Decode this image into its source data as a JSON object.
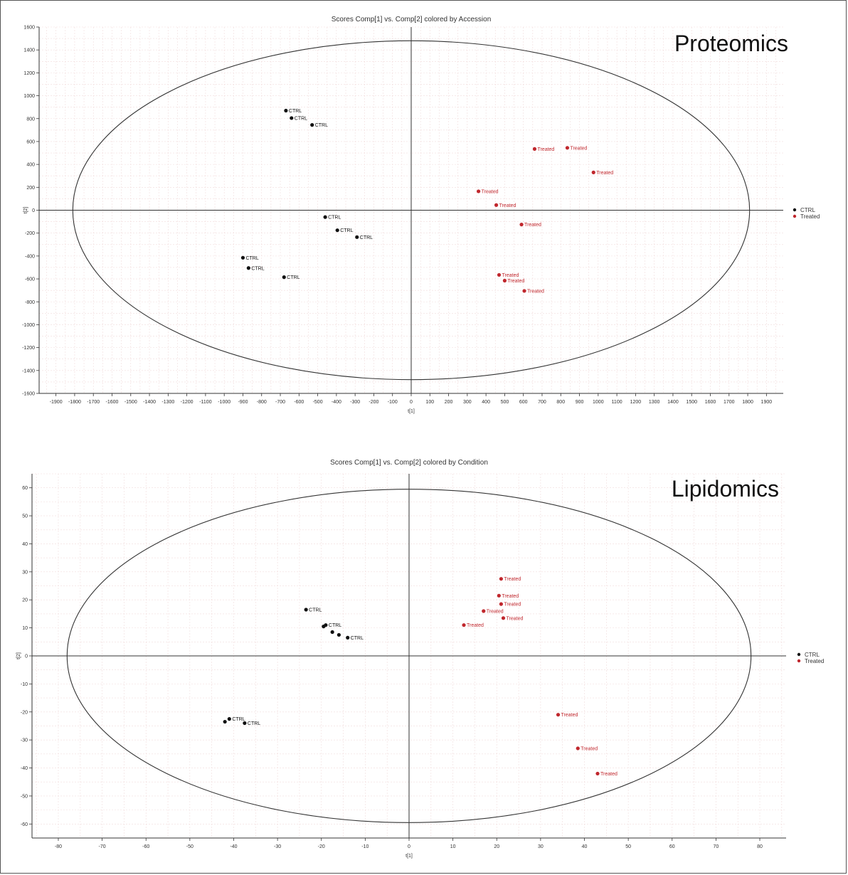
{
  "chart_data": [
    {
      "type": "scatter",
      "title": "Scores Comp[1] vs. Comp[2] colored by Accession",
      "overlay_label": "Proteomics",
      "xlabel": "t[1]",
      "ylabel": "t[2]",
      "xlim": [
        -1990,
        1990
      ],
      "ylim": [
        -1600,
        1600
      ],
      "xticks": [
        -1900,
        -1800,
        -1700,
        -1600,
        -1500,
        -1400,
        -1300,
        -1200,
        -1100,
        -1000,
        -900,
        -800,
        -700,
        -600,
        -500,
        -400,
        -300,
        -200,
        -100,
        0,
        100,
        200,
        300,
        400,
        500,
        600,
        700,
        800,
        900,
        1000,
        1100,
        1200,
        1300,
        1400,
        1500,
        1600,
        1700,
        1800,
        1900
      ],
      "yticks": [
        -1600,
        -1400,
        -1200,
        -1000,
        -800,
        -600,
        -400,
        -200,
        0,
        200,
        400,
        600,
        800,
        1000,
        1200,
        1400,
        1600
      ],
      "ellipse": {
        "rx": 1810,
        "ry": 1480
      },
      "grid": true,
      "legend": "right",
      "series": [
        {
          "name": "CTRL",
          "color": "#111111",
          "points": [
            {
              "x": -670,
              "y": 870,
              "label": "CTRL"
            },
            {
              "x": -640,
              "y": 805,
              "label": "CTRL"
            },
            {
              "x": -530,
              "y": 745,
              "label": "CTRL"
            },
            {
              "x": -460,
              "y": -60,
              "label": "CTRL"
            },
            {
              "x": -395,
              "y": -175,
              "label": "CTRL"
            },
            {
              "x": -290,
              "y": -235,
              "label": "CTRL"
            },
            {
              "x": -900,
              "y": -415,
              "label": "CTRL"
            },
            {
              "x": -870,
              "y": -505,
              "label": "CTRL"
            },
            {
              "x": -680,
              "y": -585,
              "label": "CTRL"
            }
          ]
        },
        {
          "name": "Treated",
          "color": "#c0272d",
          "points": [
            {
              "x": 660,
              "y": 535,
              "label": "Treated"
            },
            {
              "x": 835,
              "y": 545,
              "label": "Treated"
            },
            {
              "x": 975,
              "y": 330,
              "label": "Treated"
            },
            {
              "x": 360,
              "y": 165,
              "label": "Treated"
            },
            {
              "x": 455,
              "y": 45,
              "label": "Treated"
            },
            {
              "x": 590,
              "y": -125,
              "label": "Treated"
            },
            {
              "x": 470,
              "y": -565,
              "label": "Treated"
            },
            {
              "x": 500,
              "y": -615,
              "label": "Treated"
            },
            {
              "x": 605,
              "y": -705,
              "label": "Treated"
            }
          ]
        }
      ]
    },
    {
      "type": "scatter",
      "title": "Scores Comp[1] vs. Comp[2] colored by Condition",
      "overlay_label": "Lipidomics",
      "xlabel": "t[1]",
      "ylabel": "t[2]",
      "xlim": [
        -86,
        86
      ],
      "ylim": [
        -65,
        65
      ],
      "xticks": [
        -80,
        -70,
        -60,
        -50,
        -40,
        -30,
        -20,
        -10,
        0,
        10,
        20,
        30,
        40,
        50,
        60,
        70,
        80
      ],
      "yticks": [
        -60,
        -50,
        -40,
        -30,
        -20,
        -10,
        0,
        10,
        20,
        30,
        40,
        50,
        60
      ],
      "ellipse": {
        "rx": 78,
        "ry": 59.5
      },
      "grid": true,
      "legend": "right",
      "series": [
        {
          "name": "CTRL",
          "color": "#111111",
          "points": [
            {
              "x": -23.5,
              "y": 16.5,
              "label": "CTRL"
            },
            {
              "x": -19.5,
              "y": 10.5,
              "label": ""
            },
            {
              "x": -19,
              "y": 11,
              "label": "CTRL"
            },
            {
              "x": -17.5,
              "y": 8.5,
              "label": ""
            },
            {
              "x": -16,
              "y": 7.5,
              "label": ""
            },
            {
              "x": -14,
              "y": 6.5,
              "label": "CTRL"
            },
            {
              "x": -42,
              "y": -23.5,
              "label": ""
            },
            {
              "x": -41,
              "y": -22.5,
              "label": "CTRL"
            },
            {
              "x": -37.5,
              "y": -24,
              "label": "CTRL"
            }
          ]
        },
        {
          "name": "Treated",
          "color": "#c0272d",
          "points": [
            {
              "x": 21,
              "y": 27.5,
              "label": "Treated"
            },
            {
              "x": 20.5,
              "y": 21.5,
              "label": "Treated"
            },
            {
              "x": 21,
              "y": 18.5,
              "label": "Treated"
            },
            {
              "x": 17,
              "y": 16,
              "label": "Treated"
            },
            {
              "x": 21.5,
              "y": 13.5,
              "label": "Treated"
            },
            {
              "x": 12.5,
              "y": 11,
              "label": "Treated"
            },
            {
              "x": 34,
              "y": -21,
              "label": "Treated"
            },
            {
              "x": 38.5,
              "y": -33,
              "label": "Treated"
            },
            {
              "x": 43,
              "y": -42,
              "label": "Treated"
            }
          ]
        }
      ]
    }
  ]
}
